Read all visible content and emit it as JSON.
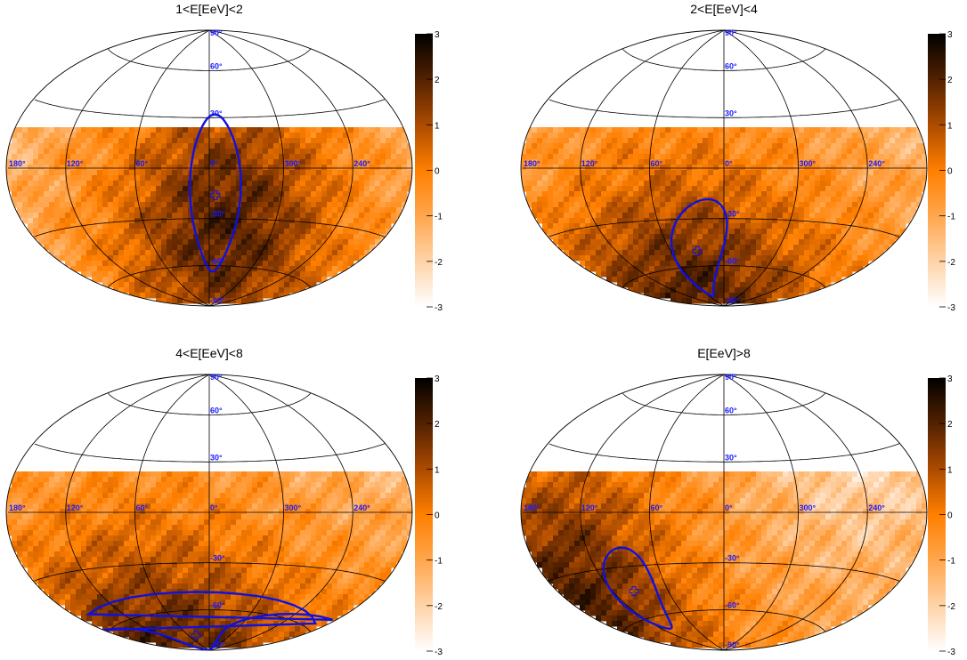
{
  "chart_data": [
    {
      "type": "heatmap",
      "projection": "hammer-aitoff",
      "title": "1<E[EeV]<2",
      "longitude_labels": [
        "180°",
        "120°",
        "60°",
        "0°",
        "300°",
        "240°"
      ],
      "latitude_labels": [
        "90°",
        "60°",
        "30°",
        "-30°",
        "-60°",
        "-90°"
      ],
      "colorbar": {
        "ticks": [
          "3",
          "2",
          "1",
          "0",
          "-1",
          "-2",
          "-3"
        ],
        "range": [
          -3,
          3
        ]
      },
      "exposure_limit_dec": 24,
      "hotspot": {
        "ra": 350,
        "dec": -25
      },
      "contour": {
        "center_ra": 355,
        "center_dec": -16,
        "half_width_deg": 20,
        "half_height_deg": 48,
        "tilt_deg": 0
      }
    },
    {
      "type": "heatmap",
      "projection": "hammer-aitoff",
      "title": "2<E[EeV]<4",
      "longitude_labels": [
        "180°",
        "120°",
        "60°",
        "0°",
        "300°",
        "240°"
      ],
      "latitude_labels": [
        "90°",
        "60°",
        "30°",
        "-30°",
        "-60°",
        "-90°"
      ],
      "colorbar": {
        "ticks": [
          "3",
          "2",
          "1",
          "0",
          "-1",
          "-2",
          "-3"
        ],
        "range": [
          -3,
          3
        ]
      },
      "exposure_limit_dec": 24,
      "hotspot": {
        "ra": 25,
        "dec": -58
      },
      "contour": {
        "center_ra": 30,
        "center_dec": -50,
        "half_width_deg": 17,
        "half_height_deg": 34,
        "tilt_deg": 25
      }
    },
    {
      "type": "heatmap",
      "projection": "hammer-aitoff",
      "title": "4<E[EeV]<8",
      "longitude_labels": [
        "180°",
        "120°",
        "60°",
        "0°",
        "300°",
        "240°"
      ],
      "latitude_labels": [
        "90°",
        "60°",
        "30°",
        "-30°",
        "-60°",
        "-90°"
      ],
      "colorbar": {
        "ticks": [
          "3",
          "2",
          "1",
          "0",
          "-1",
          "-2",
          "-3"
        ],
        "range": [
          -3,
          3
        ]
      },
      "exposure_limit_dec": 24,
      "hotspot": {
        "ra": 40,
        "dec": -65
      },
      "contour": {
        "center_ra": 40,
        "center_dec": -78,
        "half_width_deg": 60,
        "half_height_deg": 30,
        "tilt_deg": 0
      }
    },
    {
      "type": "heatmap",
      "projection": "hammer-aitoff",
      "title": "E[EeV]>8",
      "longitude_labels": [
        "180°",
        "120°",
        "60°",
        "0°",
        "300°",
        "240°"
      ],
      "latitude_labels": [
        "90°",
        "60°",
        "30°",
        "-30°",
        "-60°",
        "-90°"
      ],
      "colorbar": {
        "ticks": [
          "3",
          "2",
          "1",
          "0",
          "-1",
          "-2",
          "-3"
        ],
        "range": [
          -3,
          3
        ]
      },
      "exposure_limit_dec": 24,
      "hotspot": {
        "ra": 95,
        "dec": -35
      },
      "contour": {
        "center_ra": 97,
        "center_dec": -44,
        "half_width_deg": 17,
        "half_height_deg": 26,
        "tilt_deg": 25
      }
    }
  ]
}
